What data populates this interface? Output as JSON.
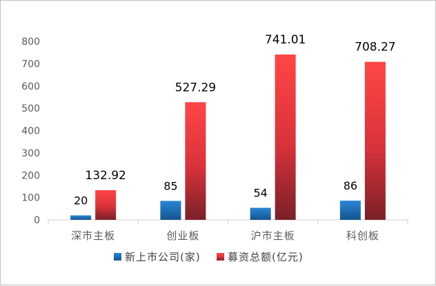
{
  "chart_data": {
    "type": "bar",
    "categories": [
      "深市主板",
      "创业板",
      "沪市主板",
      "科创板"
    ],
    "series": [
      {
        "name": "新上市公司(家)",
        "values": [
          20,
          85,
          54,
          86
        ],
        "labels": [
          "20",
          "85",
          "54",
          "86"
        ],
        "color": "#1f6fbf"
      },
      {
        "name": "募资总额(亿元)",
        "values": [
          132.92,
          527.29,
          741.01,
          708.27
        ],
        "labels": [
          "132.92",
          "527.29",
          "741.01",
          "708.27"
        ],
        "color": "#e8363a"
      }
    ],
    "title": "",
    "xlabel": "",
    "ylabel": "",
    "ylim": [
      0,
      800
    ],
    "yticks": [
      "0",
      "100",
      "200",
      "300",
      "400",
      "500",
      "600",
      "700",
      "800"
    ],
    "grid": false,
    "legend": "bottom"
  }
}
